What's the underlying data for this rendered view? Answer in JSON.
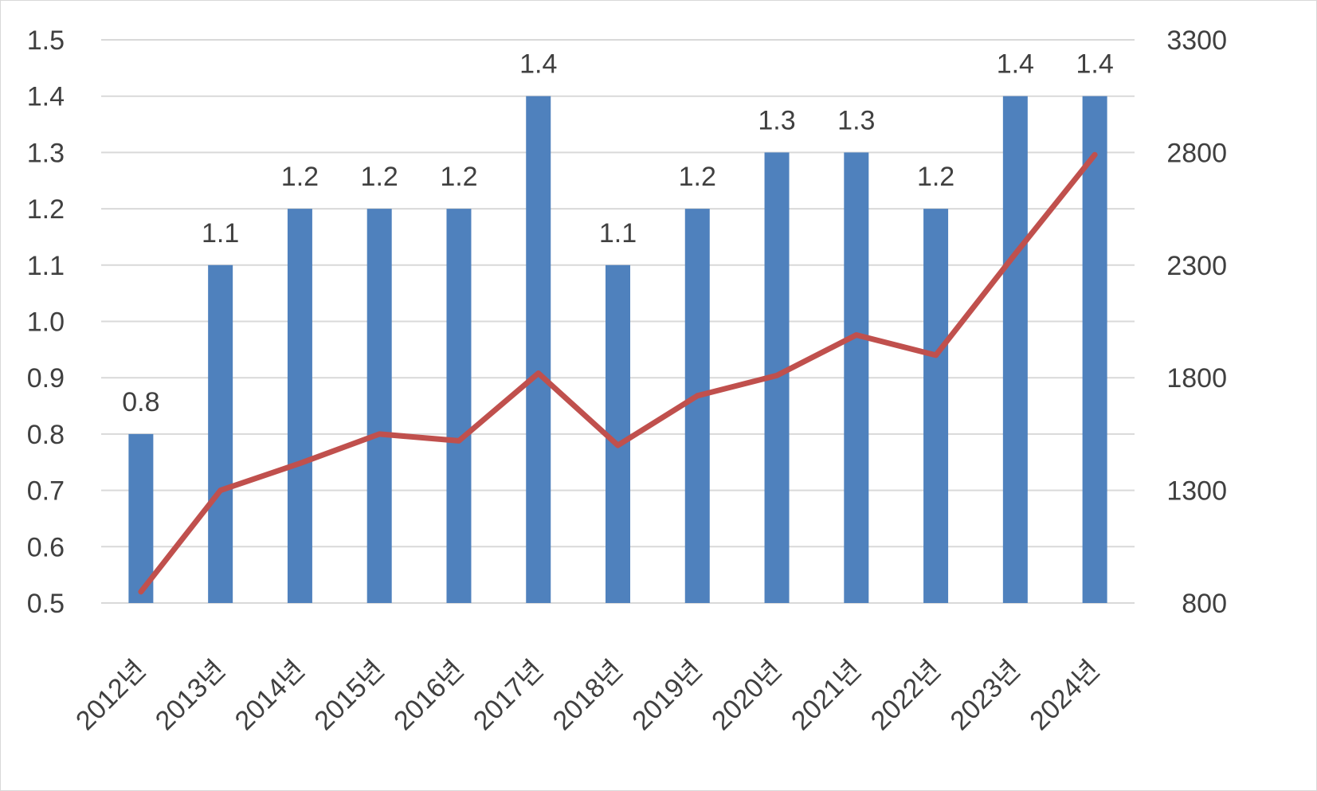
{
  "chart_data": {
    "type": "bar",
    "categories": [
      "2012년",
      "2013년",
      "2014년",
      "2015년",
      "2016년",
      "2017년",
      "2018년",
      "2019년",
      "2020년",
      "2021년",
      "2022년",
      "2023년",
      "2024년"
    ],
    "series": [
      {
        "type": "bar",
        "axis": "left",
        "color": "#4F81BD",
        "values": [
          0.8,
          1.1,
          1.2,
          1.2,
          1.2,
          1.4,
          1.1,
          1.2,
          1.3,
          1.3,
          1.2,
          1.4,
          1.4
        ],
        "data_labels": [
          "0.8",
          "1.1",
          "1.2",
          "1.2",
          "1.2",
          "1.4",
          "1.1",
          "1.2",
          "1.3",
          "1.3",
          "1.2",
          "1.4",
          "1.4"
        ]
      },
      {
        "type": "line",
        "axis": "right",
        "color": "#C0504D",
        "values": [
          850,
          1300,
          1420,
          1550,
          1520,
          1820,
          1500,
          1720,
          1810,
          1990,
          1900,
          2350,
          2790
        ]
      }
    ],
    "y_left": {
      "ticks": [
        "0.5",
        "0.6",
        "0.7",
        "0.8",
        "0.9",
        "1.0",
        "1.1",
        "1.2",
        "1.3",
        "1.4",
        "1.5"
      ],
      "range": [
        0.5,
        1.5
      ]
    },
    "y_right": {
      "ticks": [
        "800",
        "1300",
        "1800",
        "2300",
        "2800",
        "3300"
      ],
      "range": [
        800,
        3300
      ]
    },
    "title": "",
    "xlabel": "",
    "ylabel": "",
    "grid": true,
    "legend": "none",
    "colors": {
      "bar": "#4F81BD",
      "line": "#C0504D",
      "grid": "#d9d9d9",
      "text": "#404040"
    }
  }
}
